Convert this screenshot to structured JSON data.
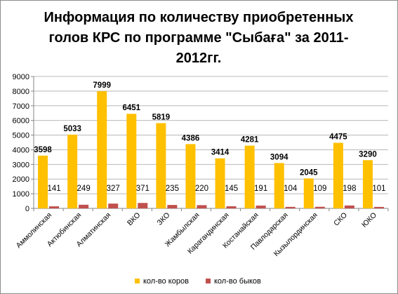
{
  "chart_data": {
    "type": "bar",
    "title_lines": [
      "Информация по количеству приобретенных",
      "голов КРС по программе \"Сыбаға\" за 2011-",
      "2012гг."
    ],
    "categories": [
      "Аммолинская",
      "Актюбинская",
      "Алматинская",
      "ВКО",
      "ЗКО",
      "Жамбылская",
      "Карагандинская",
      "Костанайская",
      "Павлодарская",
      "Кызылординская",
      "СКО",
      "ЮКО"
    ],
    "series": [
      {
        "name": "кол-во коров",
        "color": "#FFC000",
        "values": [
          3598,
          5033,
          7999,
          6451,
          5819,
          4386,
          3414,
          4281,
          3094,
          2045,
          4475,
          3290
        ]
      },
      {
        "name": "кол-во быков",
        "color": "#C0504D",
        "values": [
          141,
          249,
          327,
          371,
          235,
          220,
          145,
          191,
          104,
          109,
          198,
          101
        ]
      }
    ],
    "y_ticks": [
      "0",
      "1000",
      "2000",
      "3000",
      "4000",
      "5000",
      "6000",
      "7000",
      "8000",
      "9000"
    ],
    "ylim": [
      0,
      9000
    ],
    "grid": true,
    "legend_position": "bottom"
  }
}
